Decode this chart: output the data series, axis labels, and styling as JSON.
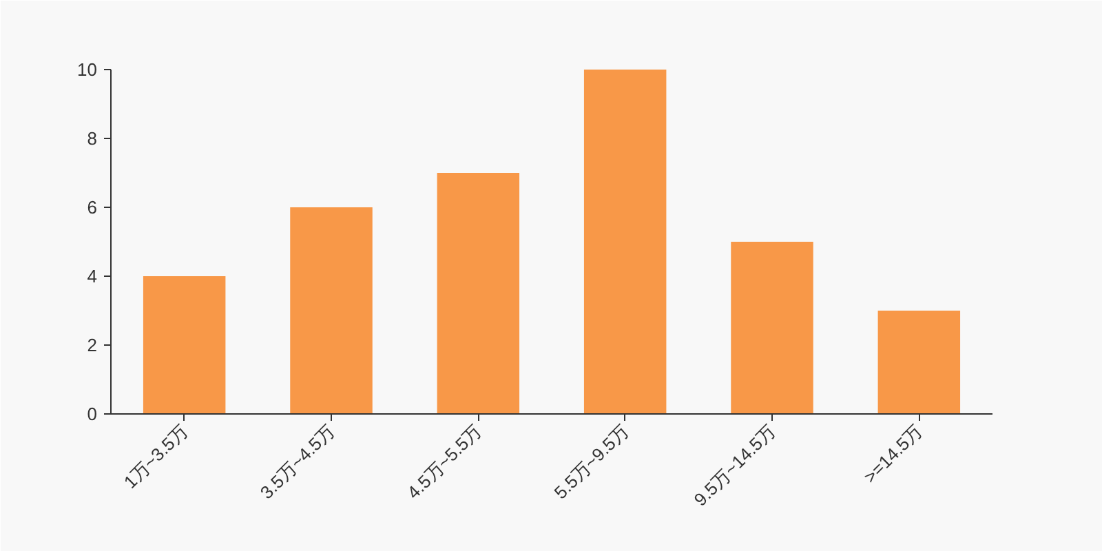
{
  "chart_data": {
    "type": "bar",
    "categories": [
      "1万~3.5万",
      "3.5万~4.5万",
      "4.5万~5.5万",
      "5.5万~9.5万",
      "9.5万~14.5万",
      ">=14.5万"
    ],
    "values": [
      4,
      6,
      7,
      10,
      5,
      3
    ],
    "color": "#f89848",
    "ylim": [
      0,
      10
    ],
    "yticks": [
      0,
      2,
      4,
      6,
      8,
      10
    ],
    "grid": false
  }
}
